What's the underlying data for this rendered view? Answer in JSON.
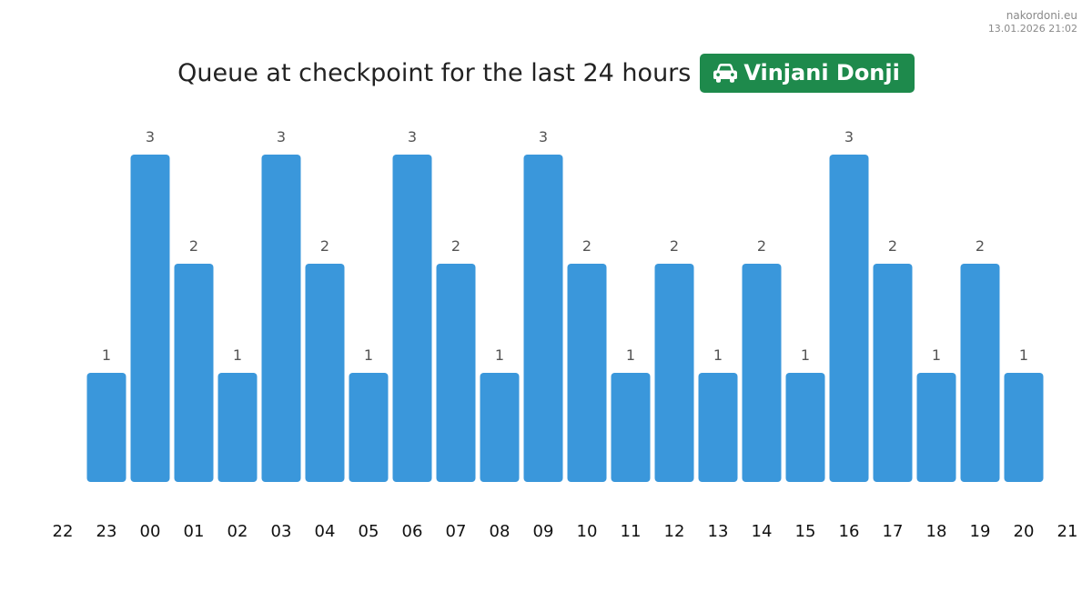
{
  "watermark": {
    "site": "nakordoni.eu",
    "timestamp": "13.01.2026 21:02"
  },
  "header": {
    "title": "Queue at checkpoint for the last 24 hours",
    "checkpoint_name": "Vinjani Donji",
    "checkpoint_icon": "car-icon",
    "badge_color": "#1e8a4c"
  },
  "chart_data": {
    "type": "bar",
    "title": "Queue at checkpoint for the last 24 hours",
    "xlabel": "",
    "ylabel": "",
    "x_ticks": [
      "22",
      "23",
      "00",
      "01",
      "02",
      "03",
      "04",
      "05",
      "06",
      "07",
      "08",
      "09",
      "10",
      "11",
      "12",
      "13",
      "14",
      "15",
      "16",
      "17",
      "18",
      "19",
      "20",
      "21"
    ],
    "categories": [
      "23",
      "00",
      "01",
      "02",
      "03",
      "04",
      "05",
      "06",
      "07",
      "08",
      "09",
      "10",
      "11",
      "12",
      "13",
      "14",
      "15",
      "16",
      "17",
      "18",
      "19",
      "20"
    ],
    "values": [
      1,
      3,
      2,
      1,
      3,
      2,
      1,
      3,
      2,
      1,
      3,
      2,
      1,
      2,
      1,
      2,
      1,
      3,
      2,
      1,
      2,
      1
    ],
    "ylim": [
      0,
      3
    ],
    "grid": false,
    "show_value_labels": true,
    "bar_color": "#3a97db"
  }
}
